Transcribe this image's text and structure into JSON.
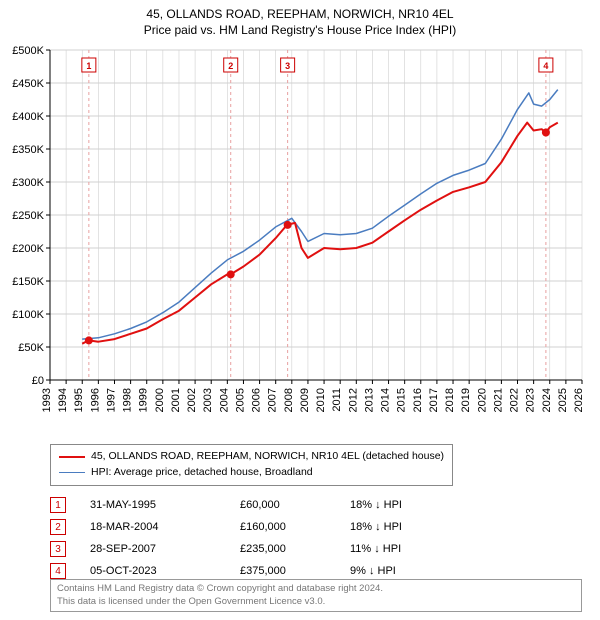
{
  "title_line1": "45, OLLANDS ROAD, REEPHAM, NORWICH, NR10 4EL",
  "title_line2": "Price paid vs. HM Land Registry's House Price Index (HPI)",
  "chart": {
    "type": "line",
    "background_color": "#ffffff",
    "grid_color": "#d0d0d0",
    "axis_color": "#000000",
    "title_fontsize": 12,
    "label_fontsize": 11,
    "x": {
      "min": 1993,
      "max": 2026,
      "tick_step": 1,
      "ticks": [
        1993,
        1994,
        1995,
        1996,
        1997,
        1998,
        1999,
        2000,
        2001,
        2002,
        2003,
        2004,
        2005,
        2006,
        2007,
        2008,
        2009,
        2010,
        2011,
        2012,
        2013,
        2014,
        2015,
        2016,
        2017,
        2018,
        2019,
        2020,
        2021,
        2022,
        2023,
        2024,
        2025,
        2026
      ]
    },
    "y": {
      "min": 0,
      "max": 500000,
      "tick_step": 50000,
      "tick_labels": [
        "£0",
        "£50K",
        "£100K",
        "£150K",
        "£200K",
        "£250K",
        "£300K",
        "£350K",
        "£400K",
        "£450K",
        "£500K"
      ]
    },
    "series": [
      {
        "name": "property",
        "label": "45, OLLANDS ROAD, REEPHAM, NORWICH, NR10 4EL (detached house)",
        "color": "#e01010",
        "line_width": 2,
        "points": [
          [
            1995.0,
            55000
          ],
          [
            1995.4,
            60000
          ],
          [
            1996.0,
            58000
          ],
          [
            1997.0,
            62000
          ],
          [
            1998.0,
            70000
          ],
          [
            1999.0,
            78000
          ],
          [
            2000.0,
            92000
          ],
          [
            2001.0,
            105000
          ],
          [
            2002.0,
            125000
          ],
          [
            2003.0,
            145000
          ],
          [
            2004.0,
            160000
          ],
          [
            2004.2,
            160000
          ],
          [
            2005.0,
            172000
          ],
          [
            2006.0,
            190000
          ],
          [
            2007.0,
            215000
          ],
          [
            2007.7,
            235000
          ],
          [
            2008.2,
            238000
          ],
          [
            2008.6,
            200000
          ],
          [
            2009.0,
            185000
          ],
          [
            2010.0,
            200000
          ],
          [
            2011.0,
            198000
          ],
          [
            2012.0,
            200000
          ],
          [
            2013.0,
            208000
          ],
          [
            2014.0,
            225000
          ],
          [
            2015.0,
            242000
          ],
          [
            2016.0,
            258000
          ],
          [
            2017.0,
            272000
          ],
          [
            2018.0,
            285000
          ],
          [
            2019.0,
            292000
          ],
          [
            2020.0,
            300000
          ],
          [
            2021.0,
            330000
          ],
          [
            2022.0,
            370000
          ],
          [
            2022.6,
            390000
          ],
          [
            2023.0,
            378000
          ],
          [
            2023.5,
            380000
          ],
          [
            2023.76,
            375000
          ],
          [
            2024.0,
            383000
          ],
          [
            2024.5,
            390000
          ]
        ]
      },
      {
        "name": "hpi",
        "label": "HPI: Average price, detached house, Broadland",
        "color": "#4a7cc0",
        "line_width": 1.5,
        "points": [
          [
            1995.0,
            62000
          ],
          [
            1996.0,
            64000
          ],
          [
            1997.0,
            70000
          ],
          [
            1998.0,
            78000
          ],
          [
            1999.0,
            88000
          ],
          [
            2000.0,
            102000
          ],
          [
            2001.0,
            118000
          ],
          [
            2002.0,
            140000
          ],
          [
            2003.0,
            162000
          ],
          [
            2004.0,
            182000
          ],
          [
            2005.0,
            195000
          ],
          [
            2006.0,
            212000
          ],
          [
            2007.0,
            232000
          ],
          [
            2008.0,
            245000
          ],
          [
            2008.6,
            225000
          ],
          [
            2009.0,
            210000
          ],
          [
            2010.0,
            222000
          ],
          [
            2011.0,
            220000
          ],
          [
            2012.0,
            222000
          ],
          [
            2013.0,
            230000
          ],
          [
            2014.0,
            248000
          ],
          [
            2015.0,
            265000
          ],
          [
            2016.0,
            282000
          ],
          [
            2017.0,
            298000
          ],
          [
            2018.0,
            310000
          ],
          [
            2019.0,
            318000
          ],
          [
            2020.0,
            328000
          ],
          [
            2021.0,
            365000
          ],
          [
            2022.0,
            410000
          ],
          [
            2022.7,
            435000
          ],
          [
            2023.0,
            418000
          ],
          [
            2023.5,
            415000
          ],
          [
            2024.0,
            425000
          ],
          [
            2024.5,
            440000
          ]
        ]
      }
    ],
    "sale_markers": [
      {
        "n": "1",
        "year": 1995.41,
        "price": 60000,
        "date": "31-MAY-1995",
        "price_label": "£60,000",
        "hpi_delta": "18% ↓ HPI"
      },
      {
        "n": "2",
        "year": 2004.21,
        "price": 160000,
        "date": "18-MAR-2004",
        "price_label": "£160,000",
        "hpi_delta": "18% ↓ HPI"
      },
      {
        "n": "3",
        "year": 2007.74,
        "price": 235000,
        "date": "28-SEP-2007",
        "price_label": "£235,000",
        "hpi_delta": "11% ↓ HPI"
      },
      {
        "n": "4",
        "year": 2023.76,
        "price": 375000,
        "date": "05-OCT-2023",
        "price_label": "£375,000",
        "hpi_delta": "9% ↓ HPI"
      }
    ],
    "marker_dot_color": "#e01010",
    "marker_box_border": "#cc0000",
    "marker_vline_color": "#e8a0a0",
    "marker_vline_dash": "3,3"
  },
  "legend": {
    "border_color": "#888888",
    "rows": [
      {
        "color": "#e01010",
        "width": 2,
        "label_path": "chart.series.0.label"
      },
      {
        "color": "#4a7cc0",
        "width": 1.5,
        "label_path": "chart.series.1.label"
      }
    ]
  },
  "footer": {
    "line1": "Contains HM Land Registry data © Crown copyright and database right 2024.",
    "line2": "This data is licensed under the Open Government Licence v3.0."
  }
}
